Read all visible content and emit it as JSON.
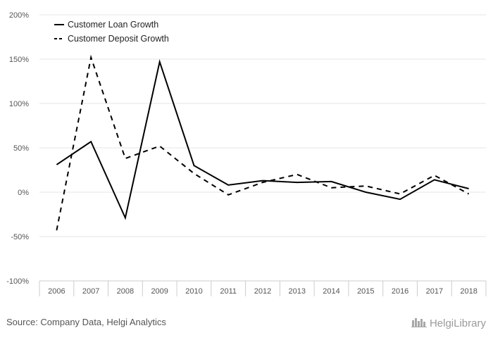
{
  "chart_data": {
    "type": "line",
    "categories": [
      "2006",
      "2007",
      "2008",
      "2009",
      "2010",
      "2011",
      "2012",
      "2013",
      "2014",
      "2015",
      "2016",
      "2017",
      "2018"
    ],
    "series": [
      {
        "name": "Customer Loan Growth",
        "style": "solid",
        "values": [
          31,
          57,
          -29,
          147,
          30,
          8,
          13,
          11,
          12,
          0,
          -8,
          14,
          4
        ]
      },
      {
        "name": "Customer Deposit Growth",
        "style": "dashed",
        "values": [
          -43,
          152,
          38,
          52,
          21,
          -3,
          11,
          20,
          5,
          7,
          -2,
          19,
          -2
        ]
      }
    ],
    "ylim": [
      -100,
      200
    ],
    "yticks": [
      -100,
      -50,
      0,
      50,
      100,
      150,
      200
    ],
    "ytick_labels": [
      "-100%",
      "-50%",
      "0%",
      "50%",
      "100%",
      "150%",
      "200%"
    ],
    "grid": true,
    "legend_position": "top-left",
    "colors": {
      "line": "#000000",
      "grid": "#e6e6e6",
      "axis": "#cccccc",
      "text": "#555555"
    }
  },
  "footer": {
    "source": "Source: Company Data, Helgi Analytics",
    "brand": "HelgiLibrary"
  }
}
